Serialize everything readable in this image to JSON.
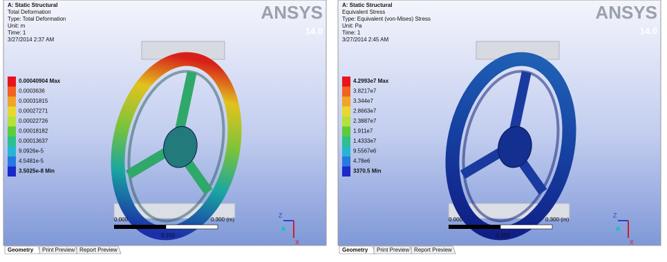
{
  "panels": [
    {
      "header": [
        "A: Static Structural",
        "Total Deformation",
        "Type: Total Deformation",
        "Unit: m",
        "Time: 1",
        "3/27/2014 2:37 AM"
      ],
      "legend": [
        "0.00040904 Max",
        "0.0003636",
        "0.00031815",
        "0.00027271",
        "0.00022726",
        "0.00018182",
        "0.00013637",
        "9.0926e-5",
        "4.5481e-5",
        "3.5025e-8 Min"
      ],
      "logo": "ANSYS",
      "version": "14.0",
      "scale": {
        "start": "0.000",
        "end": "0.300 (m)",
        "mid": "0.150"
      },
      "axes": {
        "z": "Z",
        "x": "X"
      },
      "tabs": [
        "Geometry",
        "Print Preview",
        "Report Preview"
      ]
    },
    {
      "header": [
        "A: Static Structural",
        "Equivalent Stress",
        "Type: Equivalent (von-Mises) Stress",
        "Unit: Pa",
        "Time: 1",
        "3/27/2014 2:45 AM"
      ],
      "legend": [
        "4.2993e7 Max",
        "3.8217e7",
        "3.344e7",
        "2.8663e7",
        "2.3887e7",
        "1.911e7",
        "1.4333e7",
        "9.5567e6",
        "4.78e6",
        "3370.5 Min"
      ],
      "logo": "ANSYS",
      "version": "14.0",
      "scale": {
        "start": "0.000",
        "end": "0.300 (m)",
        "mid": "0.150"
      },
      "axes": {
        "z": "Z",
        "x": "X"
      },
      "tabs": [
        "Geometry",
        "Print Preview",
        "Report Preview"
      ]
    }
  ]
}
